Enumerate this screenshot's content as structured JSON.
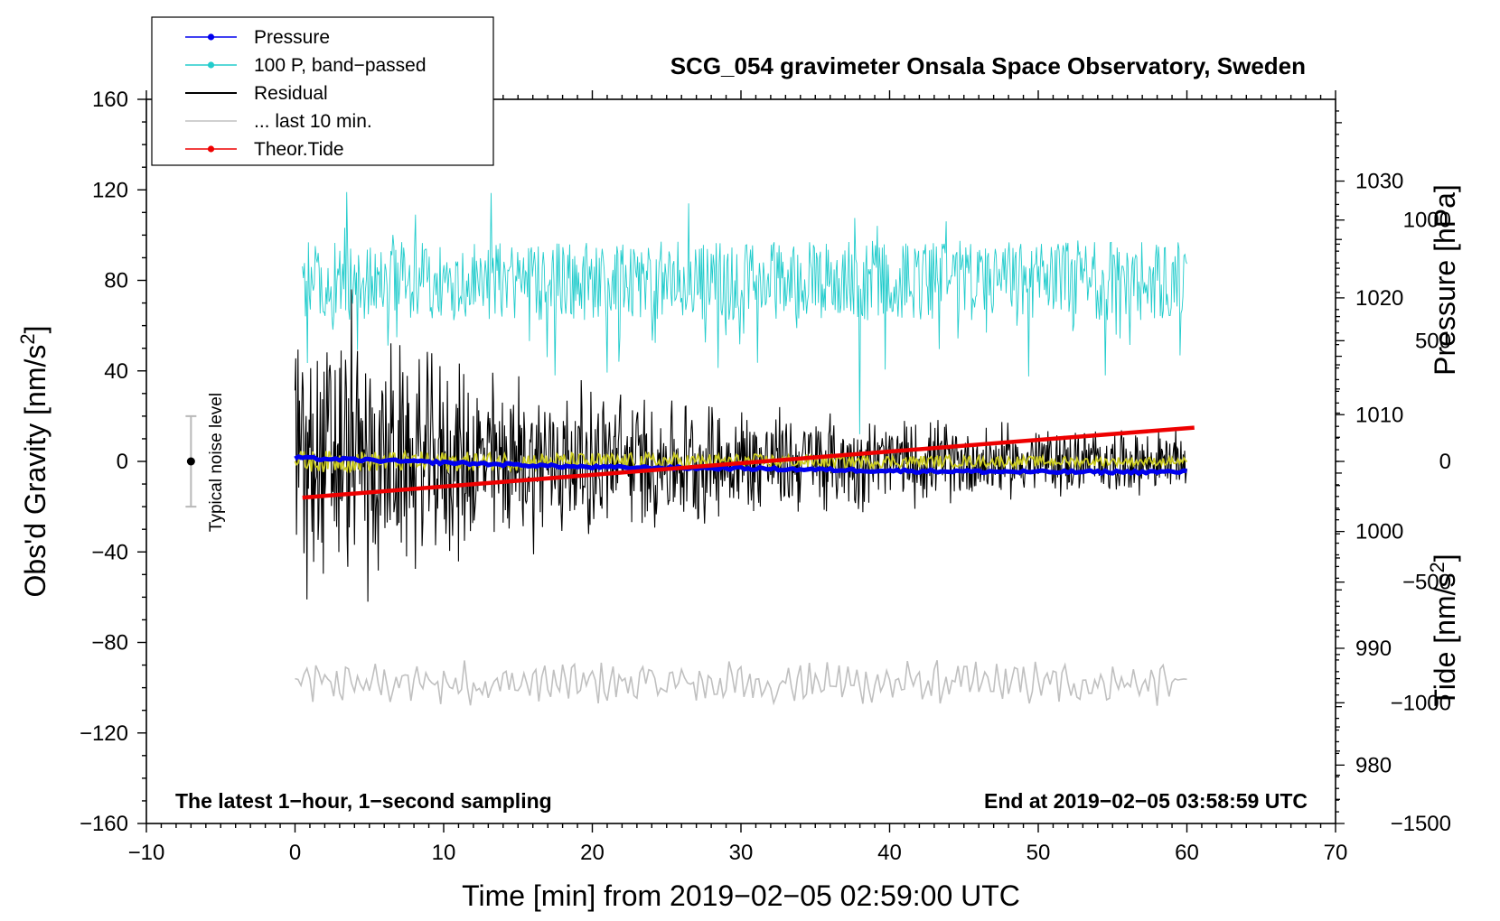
{
  "chart_data": {
    "type": "line",
    "title": "SCG_054 gravimeter Onsala Space Observatory, Sweden",
    "xlabel": "Time [min] from 2019−02−05 02:59:00 UTC",
    "ylabel": "Obs'd Gravity [nm/s",
    "ylabel_sup": "2",
    "ylabel_close": "]",
    "xlim": [
      -10,
      70
    ],
    "ylim": [
      -160,
      160
    ],
    "x_ticks": [
      -10,
      0,
      10,
      20,
      30,
      40,
      50,
      60,
      70
    ],
    "x_tick_labels": [
      "−10",
      "0",
      "10",
      "20",
      "30",
      "40",
      "50",
      "60",
      "70"
    ],
    "y_ticks": [
      -160,
      -120,
      -80,
      -40,
      0,
      40,
      80,
      120,
      160
    ],
    "y_tick_labels": [
      "−160",
      "−120",
      "−80",
      "−40",
      "0",
      "40",
      "80",
      "120",
      "160"
    ],
    "right_axis_pressure": {
      "label": "Pressure [hPa]",
      "ylim": [
        975,
        1037
      ],
      "ticks": [
        980,
        990,
        1000,
        1010,
        1020,
        1030
      ],
      "tick_labels": [
        "980",
        "990",
        "1000",
        "1010",
        "1020",
        "1030"
      ]
    },
    "right_axis_tide": {
      "label": "Tide [nm/s",
      "label_sup": "2",
      "label_close": "]",
      "ylim": [
        -1500,
        1500
      ],
      "ticks": [
        -1500,
        -1000,
        -500,
        0,
        500,
        1000
      ],
      "tick_labels": [
        "−1500",
        "−1000",
        "−500",
        "0",
        "500",
        "1000"
      ]
    },
    "legend": {
      "position": "top-left",
      "entries": [
        {
          "label": "Pressure",
          "color": "#0000ee",
          "marker": true
        },
        {
          "label": "100 P, band−passed",
          "color": "#22cccc",
          "marker": true
        },
        {
          "label": "Residual",
          "color": "#000000",
          "marker": false
        },
        {
          "label": "... last 10 min.",
          "color": "#c0c0c0",
          "marker": false
        },
        {
          "label": "Theor.Tide",
          "color": "#ee0000",
          "marker": true
        }
      ]
    },
    "series": [
      {
        "name": "Pressure",
        "axis": "pressure_hPa",
        "color": "#0000ee",
        "x": [
          0,
          10,
          20,
          30,
          40,
          50,
          60
        ],
        "values": [
          1006.3,
          1005.9,
          1005.5,
          1005.4,
          1005.2,
          1005.1,
          1005.1
        ]
      },
      {
        "name": "100 P, band-passed",
        "axis": "gravity",
        "color": "#22cccc",
        "x_range": [
          0.5,
          60
        ],
        "baseline": 80,
        "amplitude": 22,
        "values_sample": [
          {
            "x": 3.5,
            "y": 119
          },
          {
            "x": 17.5,
            "y": 38
          },
          {
            "x": 38,
            "y": 12
          },
          {
            "x": 54.5,
            "y": 38
          }
        ]
      },
      {
        "name": "Residual",
        "axis": "gravity",
        "color": "#000000",
        "x_range": [
          0,
          60
        ],
        "baseline": 0,
        "amplitude_start": 62,
        "amplitude_end": 8,
        "values_sample": [
          {
            "x": 3.8,
            "y": 76
          },
          {
            "x": 4.9,
            "y": -62
          },
          {
            "x": 0.8,
            "y": -61
          }
        ]
      },
      {
        "name": "Smoothed residual",
        "axis": "gravity",
        "color": "#cccc22",
        "x_range": [
          0,
          60
        ],
        "baseline": 0,
        "amplitude": 3
      },
      {
        "name": "Theor.Tide",
        "axis": "tide_nm_s2",
        "color": "#ee0000",
        "x": [
          0.5,
          60.5
        ],
        "values": [
          -150,
          140
        ]
      },
      {
        "name": "... last 10 min.",
        "axis": "gravity",
        "color": "#c0c0c0",
        "x_range": [
          0,
          60
        ],
        "baseline": -98,
        "amplitude": 8
      }
    ],
    "annotations": {
      "noise_label": "Typical noise level",
      "noise_x": -7,
      "noise_range": [
        -20,
        20
      ],
      "bottom_left": "The latest 1−hour, 1−second sampling",
      "bottom_right": "End at 2019−02−05 03:58:59 UTC"
    }
  }
}
